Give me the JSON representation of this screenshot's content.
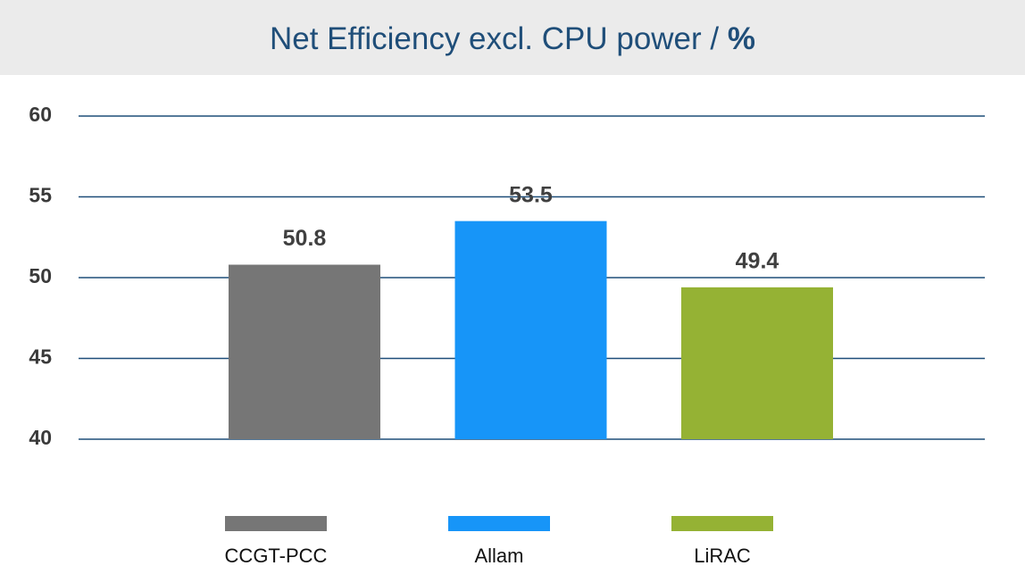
{
  "chart_data": {
    "type": "bar",
    "title": "Net Efficiency excl. CPU power /",
    "title_unit": "%",
    "categories": [
      "CCGT-PCC",
      "Allam",
      "LiRAC"
    ],
    "values": [
      50.8,
      53.5,
      49.4
    ],
    "colors": [
      "#767676",
      "#1795f8",
      "#95b234"
    ],
    "ylim": [
      40,
      60
    ],
    "yticks": [
      40,
      45,
      50,
      55,
      60
    ],
    "grid": true
  }
}
